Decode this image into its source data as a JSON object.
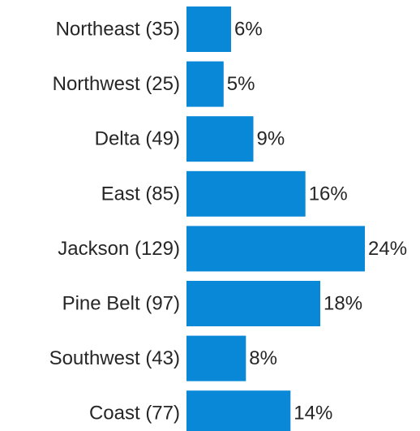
{
  "chart_data": {
    "type": "bar",
    "orientation": "horizontal",
    "categories": [
      "Northeast (35)",
      "Northwest (25)",
      "Delta (49)",
      "East (85)",
      "Jackson (129)",
      "Pine Belt (97)",
      "Southwest (43)",
      "Coast (77)"
    ],
    "values": [
      6,
      5,
      9,
      16,
      24,
      18,
      8,
      14
    ],
    "value_labels": [
      "6%",
      "5%",
      "9%",
      "16%",
      "24%",
      "18%",
      "8%",
      "14%"
    ],
    "title": "",
    "xlabel": "",
    "ylabel": "",
    "xlim": [
      0,
      24
    ],
    "grid": false,
    "legend": "none",
    "bar_color": "#0a88d8"
  }
}
